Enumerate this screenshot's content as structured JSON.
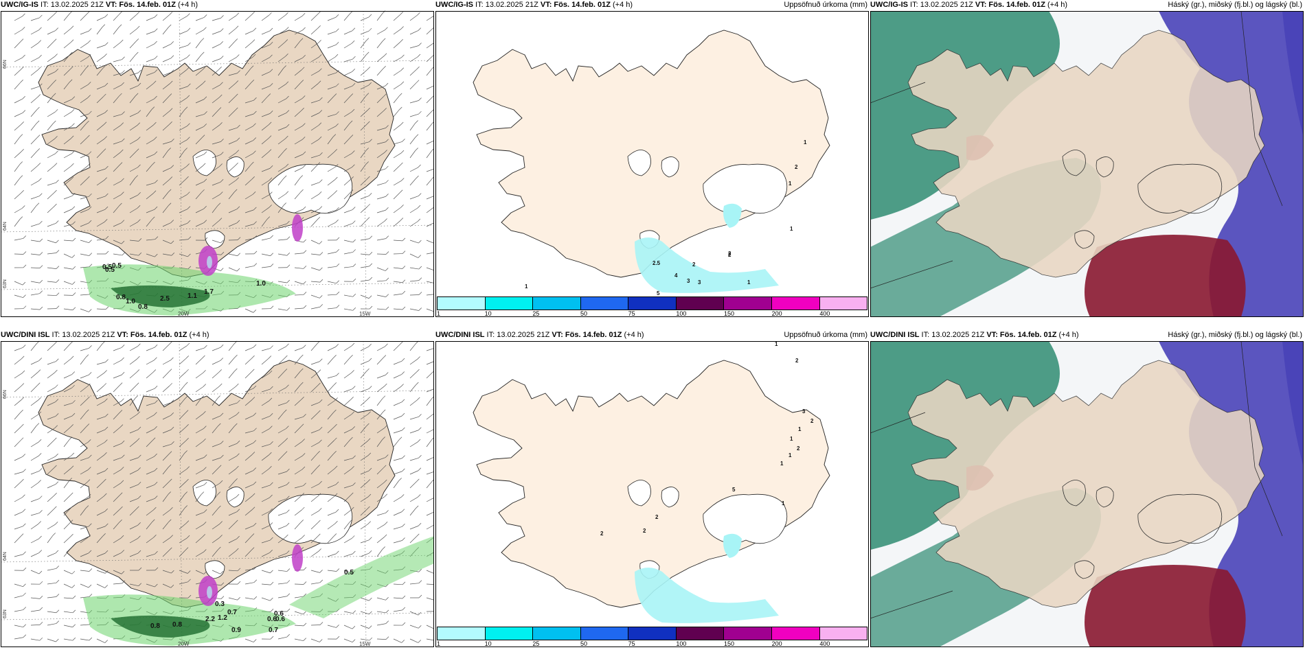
{
  "rows": [
    {
      "panels": [
        {
          "type": "wind",
          "model": "UWC/IG-IS",
          "it_text": "IT: 13.02.2025 21Z",
          "vt_label": "VT:",
          "vt_value": "Fös. 14.feb. 01Z",
          "lead": "(+4 h)",
          "right_title": "",
          "lat_labels": [
            "66N",
            "64N",
            "63N"
          ],
          "lon_labels": [
            "20W",
            "15W"
          ],
          "value_labels": [
            "0.5",
            "0.5",
            "0.8",
            "1.0",
            "0.8",
            "2.5",
            "1.1",
            "1.7",
            "1.0",
            "0.5"
          ]
        },
        {
          "type": "precip",
          "model": "UWC/IG-IS",
          "it_text": "IT: 13.02.2025 21Z",
          "vt_label": "VT:",
          "vt_value": "Fös. 14.feb. 01Z",
          "lead": "(+4 h)",
          "right_title": "Uppsöfnuð úrkoma (mm)",
          "value_labels": [
            "1",
            "2",
            "1",
            "1",
            "2",
            "2",
            "4",
            "3",
            "3",
            "1",
            "2",
            "5",
            "1",
            "2.5"
          ]
        },
        {
          "type": "cloud",
          "model": "UWC/IG-IS",
          "it_text": "IT: 13.02.2025 21Z",
          "vt_label": "VT:",
          "vt_value": "Fös. 14.feb. 01Z",
          "lead": "(+4 h)",
          "right_title": "Háský (gr.), miðský (fj.bl.) og lágský (bl.)"
        }
      ]
    },
    {
      "panels": [
        {
          "type": "wind",
          "model": "UWC/DINI ISL",
          "it_text": "IT: 13.02.2025 21Z",
          "vt_label": "VT:",
          "vt_value": "Fös. 14.feb. 01Z",
          "lead": "(+4 h)",
          "right_title": "",
          "lat_labels": [
            "66N",
            "64N",
            "63N"
          ],
          "lon_labels": [
            "20W",
            "15W"
          ],
          "value_labels": [
            "0.5",
            "0.6",
            "0.6",
            "0.6",
            "0.7",
            "0.3",
            "0.8",
            "0.8",
            "2.2",
            "1.2",
            "0.9",
            "0.7"
          ]
        },
        {
          "type": "precip",
          "model": "UWC/DINI ISL",
          "it_text": "IT: 13.02.2025 21Z",
          "vt_label": "VT:",
          "vt_value": "Fös. 14.feb. 01Z",
          "lead": "(+4 h)",
          "right_title": "Uppsöfnuð úrkoma (mm)",
          "value_labels": [
            "1",
            "2",
            "3",
            "2",
            "1",
            "1",
            "2",
            "1",
            "1",
            "5",
            "1",
            "2",
            "2",
            "2"
          ]
        },
        {
          "type": "cloud",
          "model": "UWC/DINI ISL",
          "it_text": "IT: 13.02.2025 21Z",
          "vt_label": "VT:",
          "vt_value": "Fös. 14.feb. 01Z",
          "lead": "(+4 h)",
          "right_title": "Háský (gr.), miðský (fj.bl.) og lágský (bl.)"
        }
      ]
    }
  ],
  "precip_legend": {
    "ticks": [
      "1",
      "10",
      "25",
      "50",
      "75",
      "100",
      "150",
      "200",
      "400"
    ],
    "colors": [
      "#b3fbff",
      "#00f0f0",
      "#00c0f0",
      "#1f68f0",
      "#1030c0",
      "#600050",
      "#a00090",
      "#f000c0",
      "#f8b0f0"
    ]
  },
  "colors": {
    "land": "#e9d7c3",
    "land_precip": "#fdf0e2",
    "sea": "#ffffff",
    "cloud_high": "#2f8c72",
    "cloud_mid": "#4a44b8",
    "cloud_low": "#8a1830",
    "precip_light": "#a8f4f6",
    "wind_rain": "#6cd46c",
    "wind_rain_dark": "#1d6b2d",
    "convective": "#c040c8"
  }
}
